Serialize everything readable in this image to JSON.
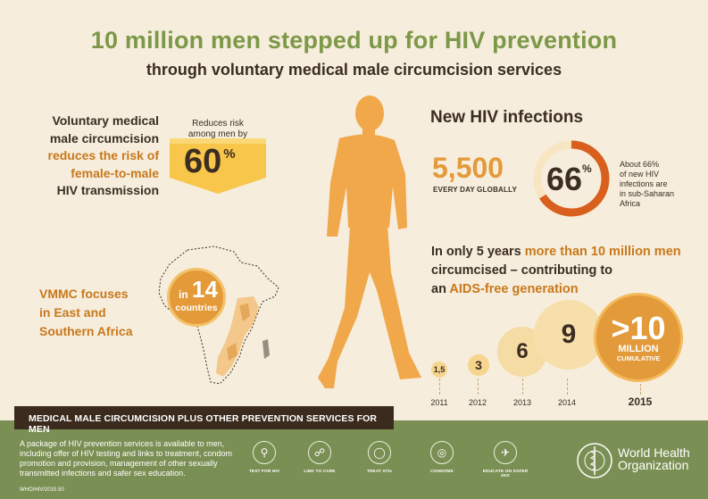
{
  "header": {
    "title": "10 million men stepped up for HIV prevention",
    "subtitle": "through voluntary medical male circumcision services"
  },
  "risk": {
    "line1": "Voluntary medical",
    "line2": "male circumcision",
    "line3": "reduces the risk of",
    "line4": "female-to-male",
    "line5": "HIV transmission",
    "label_line1": "Reduces risk",
    "label_line2": "among men by",
    "value": "60",
    "unit": "%"
  },
  "focus": {
    "line1": "VMMC focuses",
    "line2": "in East and",
    "line3": "Southern Africa",
    "in_label": "in",
    "count": "14",
    "countries_label": "countries"
  },
  "infections": {
    "heading": "New HIV infections",
    "daily_value": "5,500",
    "daily_label": "EVERY DAY GLOBALLY",
    "ring_value": "66",
    "ring_unit": "%",
    "ring_fraction": 0.66,
    "ring_desc_line1": "About 66%",
    "ring_desc_line2": "of new HIV",
    "ring_desc_line3": "infections are",
    "ring_desc_line4": "in sub-Saharan",
    "ring_desc_line5": "Africa"
  },
  "growth": {
    "line1_a": "In only 5 years ",
    "line1_b": "more than 10 million men",
    "line2": "circumcised – contributing to",
    "line3_a": "an ",
    "line3_b": "AIDS-free generation",
    "bubbles": [
      {
        "year": "2011",
        "label": "1,5"
      },
      {
        "year": "2012",
        "label": "3"
      },
      {
        "year": "2013",
        "label": "6"
      },
      {
        "year": "2014",
        "label": "9"
      }
    ],
    "final": {
      "year": "2015",
      "label": ">10",
      "million": "MILLION",
      "cumulative": "CUMULATIVE"
    }
  },
  "footer": {
    "heading": "MEDICAL MALE CIRCUMCISION PLUS OTHER PREVENTION SERVICES FOR MEN",
    "description": "A package of HIV prevention services is available to men, including offer of HIV testing and links to treatment, condom promotion and provision, management of other sexually transmitted infections and safer sex education.",
    "code": "WHO/HIV/2015.50",
    "services": [
      {
        "label": "TEST FOR HIV",
        "icon": "test-tube-icon"
      },
      {
        "label": "LINK TO CARE",
        "icon": "link-icon"
      },
      {
        "label": "TREAT STIs",
        "icon": "pill-icon"
      },
      {
        "label": "CONDOMS",
        "icon": "condom-icon"
      },
      {
        "label": "EDUCATE ON SAFER SEX",
        "icon": "speech-bubble-icon"
      }
    ],
    "org_line1": "World Health",
    "org_line2": "Organization"
  },
  "colors": {
    "title_green": "#7c9848",
    "accent_orange": "#e39a3a",
    "dark_brown": "#3b2d22",
    "footer_green": "#7a8f53",
    "background": "#f6eddc"
  }
}
